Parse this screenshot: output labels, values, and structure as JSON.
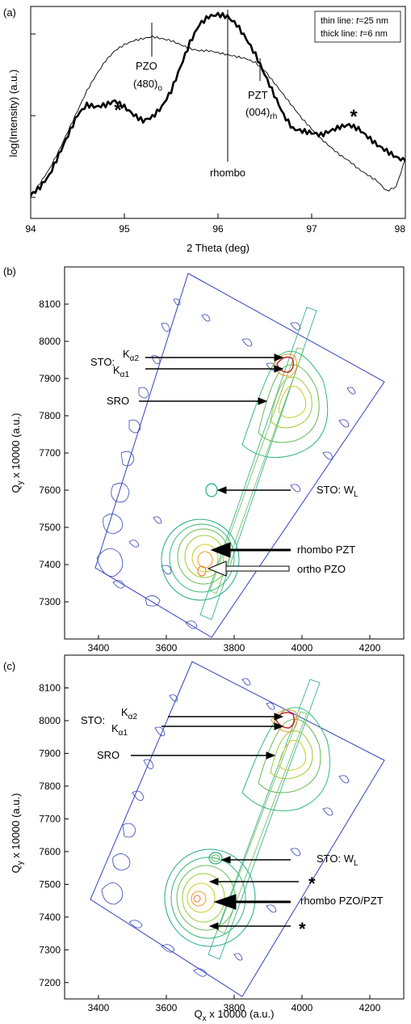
{
  "chart_data": [
    {
      "panel_label": "(a)",
      "type": "line",
      "xlabel": "2 Theta (deg)",
      "ylabel": "log(Intensity) (a.u.)",
      "xlim": [
        94,
        98
      ],
      "xticks": [
        "94",
        "95",
        "96",
        "97",
        "98"
      ],
      "grid": false,
      "legend": {
        "placement": "top-right",
        "entries": [
          {
            "prefix": "thin line: ",
            "var": "t",
            "value": "=25 nm"
          },
          {
            "prefix": "thick line: ",
            "var": "t",
            "value": "=6 nm"
          }
        ]
      },
      "series": [
        {
          "id": "thin",
          "x": [
            94.0,
            94.1,
            94.2,
            94.3,
            94.4,
            94.5,
            94.6,
            94.7,
            94.8,
            94.9,
            95.0,
            95.1,
            95.2,
            95.3,
            95.4,
            95.5,
            95.6,
            95.7,
            95.8,
            95.9,
            96.0,
            96.1,
            96.2,
            96.3,
            96.4,
            96.5,
            96.6,
            96.7,
            96.8,
            96.9,
            97.0,
            97.1,
            97.2,
            97.3,
            97.4,
            97.5,
            97.6,
            97.7,
            97.8,
            97.9,
            98.0
          ],
          "y": [
            0.09,
            0.16,
            0.23,
            0.32,
            0.42,
            0.52,
            0.62,
            0.7,
            0.77,
            0.82,
            0.85,
            0.87,
            0.88,
            0.89,
            0.88,
            0.87,
            0.85,
            0.83,
            0.82,
            0.82,
            0.81,
            0.8,
            0.79,
            0.78,
            0.76,
            0.72,
            0.66,
            0.6,
            0.54,
            0.48,
            0.43,
            0.38,
            0.34,
            0.3,
            0.27,
            0.23,
            0.2,
            0.17,
            0.12,
            0.14,
            0.28
          ]
        },
        {
          "id": "thick",
          "x": [
            94.0,
            94.1,
            94.2,
            94.3,
            94.4,
            94.5,
            94.6,
            94.7,
            94.8,
            94.9,
            95.0,
            95.1,
            95.2,
            95.3,
            95.4,
            95.5,
            95.6,
            95.7,
            95.8,
            95.9,
            96.0,
            96.1,
            96.2,
            96.3,
            96.4,
            96.5,
            96.6,
            96.7,
            96.8,
            96.9,
            97.0,
            97.1,
            97.2,
            97.3,
            97.4,
            97.5,
            97.6,
            97.7,
            97.8,
            97.9,
            98.0
          ],
          "y": [
            0.1,
            0.14,
            0.2,
            0.3,
            0.4,
            0.5,
            0.55,
            0.54,
            0.55,
            0.57,
            0.54,
            0.5,
            0.47,
            0.49,
            0.54,
            0.62,
            0.74,
            0.86,
            0.95,
            0.99,
            1.0,
            0.99,
            0.95,
            0.88,
            0.8,
            0.7,
            0.6,
            0.5,
            0.43,
            0.42,
            0.41,
            0.4,
            0.42,
            0.44,
            0.45,
            0.43,
            0.39,
            0.35,
            0.32,
            0.29,
            0.27
          ]
        }
      ],
      "annotations": [
        {
          "id": "pzo",
          "lines": [
            "PZO",
            "(480)",
            "o"
          ],
          "x": 95.3
        },
        {
          "id": "pzt",
          "lines": [
            "PZT",
            "(004)",
            "rh"
          ],
          "x": 96.5
        },
        {
          "id": "rhombo",
          "text": "rhombo",
          "x": 96.1
        },
        {
          "id": "star1",
          "text": "*",
          "x": 94.9
        },
        {
          "id": "star2",
          "text": "*",
          "x": 97.45
        }
      ]
    },
    {
      "panel_label": "(b)",
      "type": "heatmap",
      "subtype": "contour map",
      "xlabel": "",
      "ylabel": "Q",
      "ylabel_sub": "y",
      "ylabel_rest": " x 10000 (a.u.)",
      "xlim": [
        3300,
        4300
      ],
      "ylim": [
        7200,
        8200
      ],
      "xticks": [
        "3400",
        "3600",
        "3800",
        "4000",
        "4200"
      ],
      "yticks": [
        "7300",
        "7400",
        "7500",
        "7600",
        "7700",
        "7800",
        "7900",
        "8000",
        "8100"
      ],
      "peaks": [
        {
          "name": "STO",
          "qx": 3950,
          "qy": 7920
        },
        {
          "name": "SRO",
          "qx": 3870,
          "qy": 7830
        },
        {
          "name": "STO: W_L",
          "qx": 3720,
          "qy": 7605
        },
        {
          "name": "rhombo PZT",
          "qx": 3700,
          "qy": 7495
        },
        {
          "name": "ortho PZO",
          "qx": 3690,
          "qy": 7440
        }
      ],
      "labels": {
        "sto": "STO:",
        "ka2": "K",
        "ka2_sub": "α2",
        "ka1": "K",
        "ka1_sub": "α1",
        "sro": "SRO",
        "wl": "STO: W",
        "wl_sub": "L",
        "rhombo": "rhombo PZT",
        "ortho": "ortho PZO"
      }
    },
    {
      "panel_label": "(c)",
      "type": "heatmap",
      "subtype": "contour map",
      "xlabel": "Q",
      "xlabel_sub": "x",
      "xlabel_rest": " x 10000 (a.u.)",
      "ylabel": "Q",
      "ylabel_sub": "y",
      "ylabel_rest": " x 10000 (a.u.)",
      "xlim": [
        3300,
        4300
      ],
      "ylim": [
        7150,
        8200
      ],
      "xticks": [
        "3400",
        "3600",
        "3800",
        "4000",
        "4200"
      ],
      "yticks": [
        "7200",
        "7300",
        "7400",
        "7500",
        "7600",
        "7700",
        "7800",
        "7900",
        "8000",
        "8100"
      ],
      "peaks": [
        {
          "name": "STO",
          "qx": 3950,
          "qy": 7890
        },
        {
          "name": "SRO",
          "qx": 3900,
          "qy": 7790
        },
        {
          "name": "STO: W_L",
          "qx": 3800,
          "qy": 7550
        },
        {
          "name": "*",
          "qx": 3770,
          "qy": 7500
        },
        {
          "name": "rhombo PZO/PZT",
          "qx": 3740,
          "qy": 7430
        },
        {
          "name": "*",
          "qx": 3760,
          "qy": 7360
        }
      ],
      "labels": {
        "sto": "STO:",
        "ka2": "K",
        "ka2_sub": "α2",
        "ka1": "K",
        "ka1_sub": "α1",
        "sro": "SRO",
        "wl": "STO: W",
        "wl_sub": "L",
        "star": "*",
        "rhombo": "rhombo PZO/PZT"
      }
    }
  ],
  "colors": {
    "outer_contour": "#3344bb",
    "mid_contour": "#22aa88",
    "inner_contour": "#99cc33",
    "hot_contour": "#ee7722",
    "peak_contour": "#cc2222",
    "axis": "#000000"
  }
}
